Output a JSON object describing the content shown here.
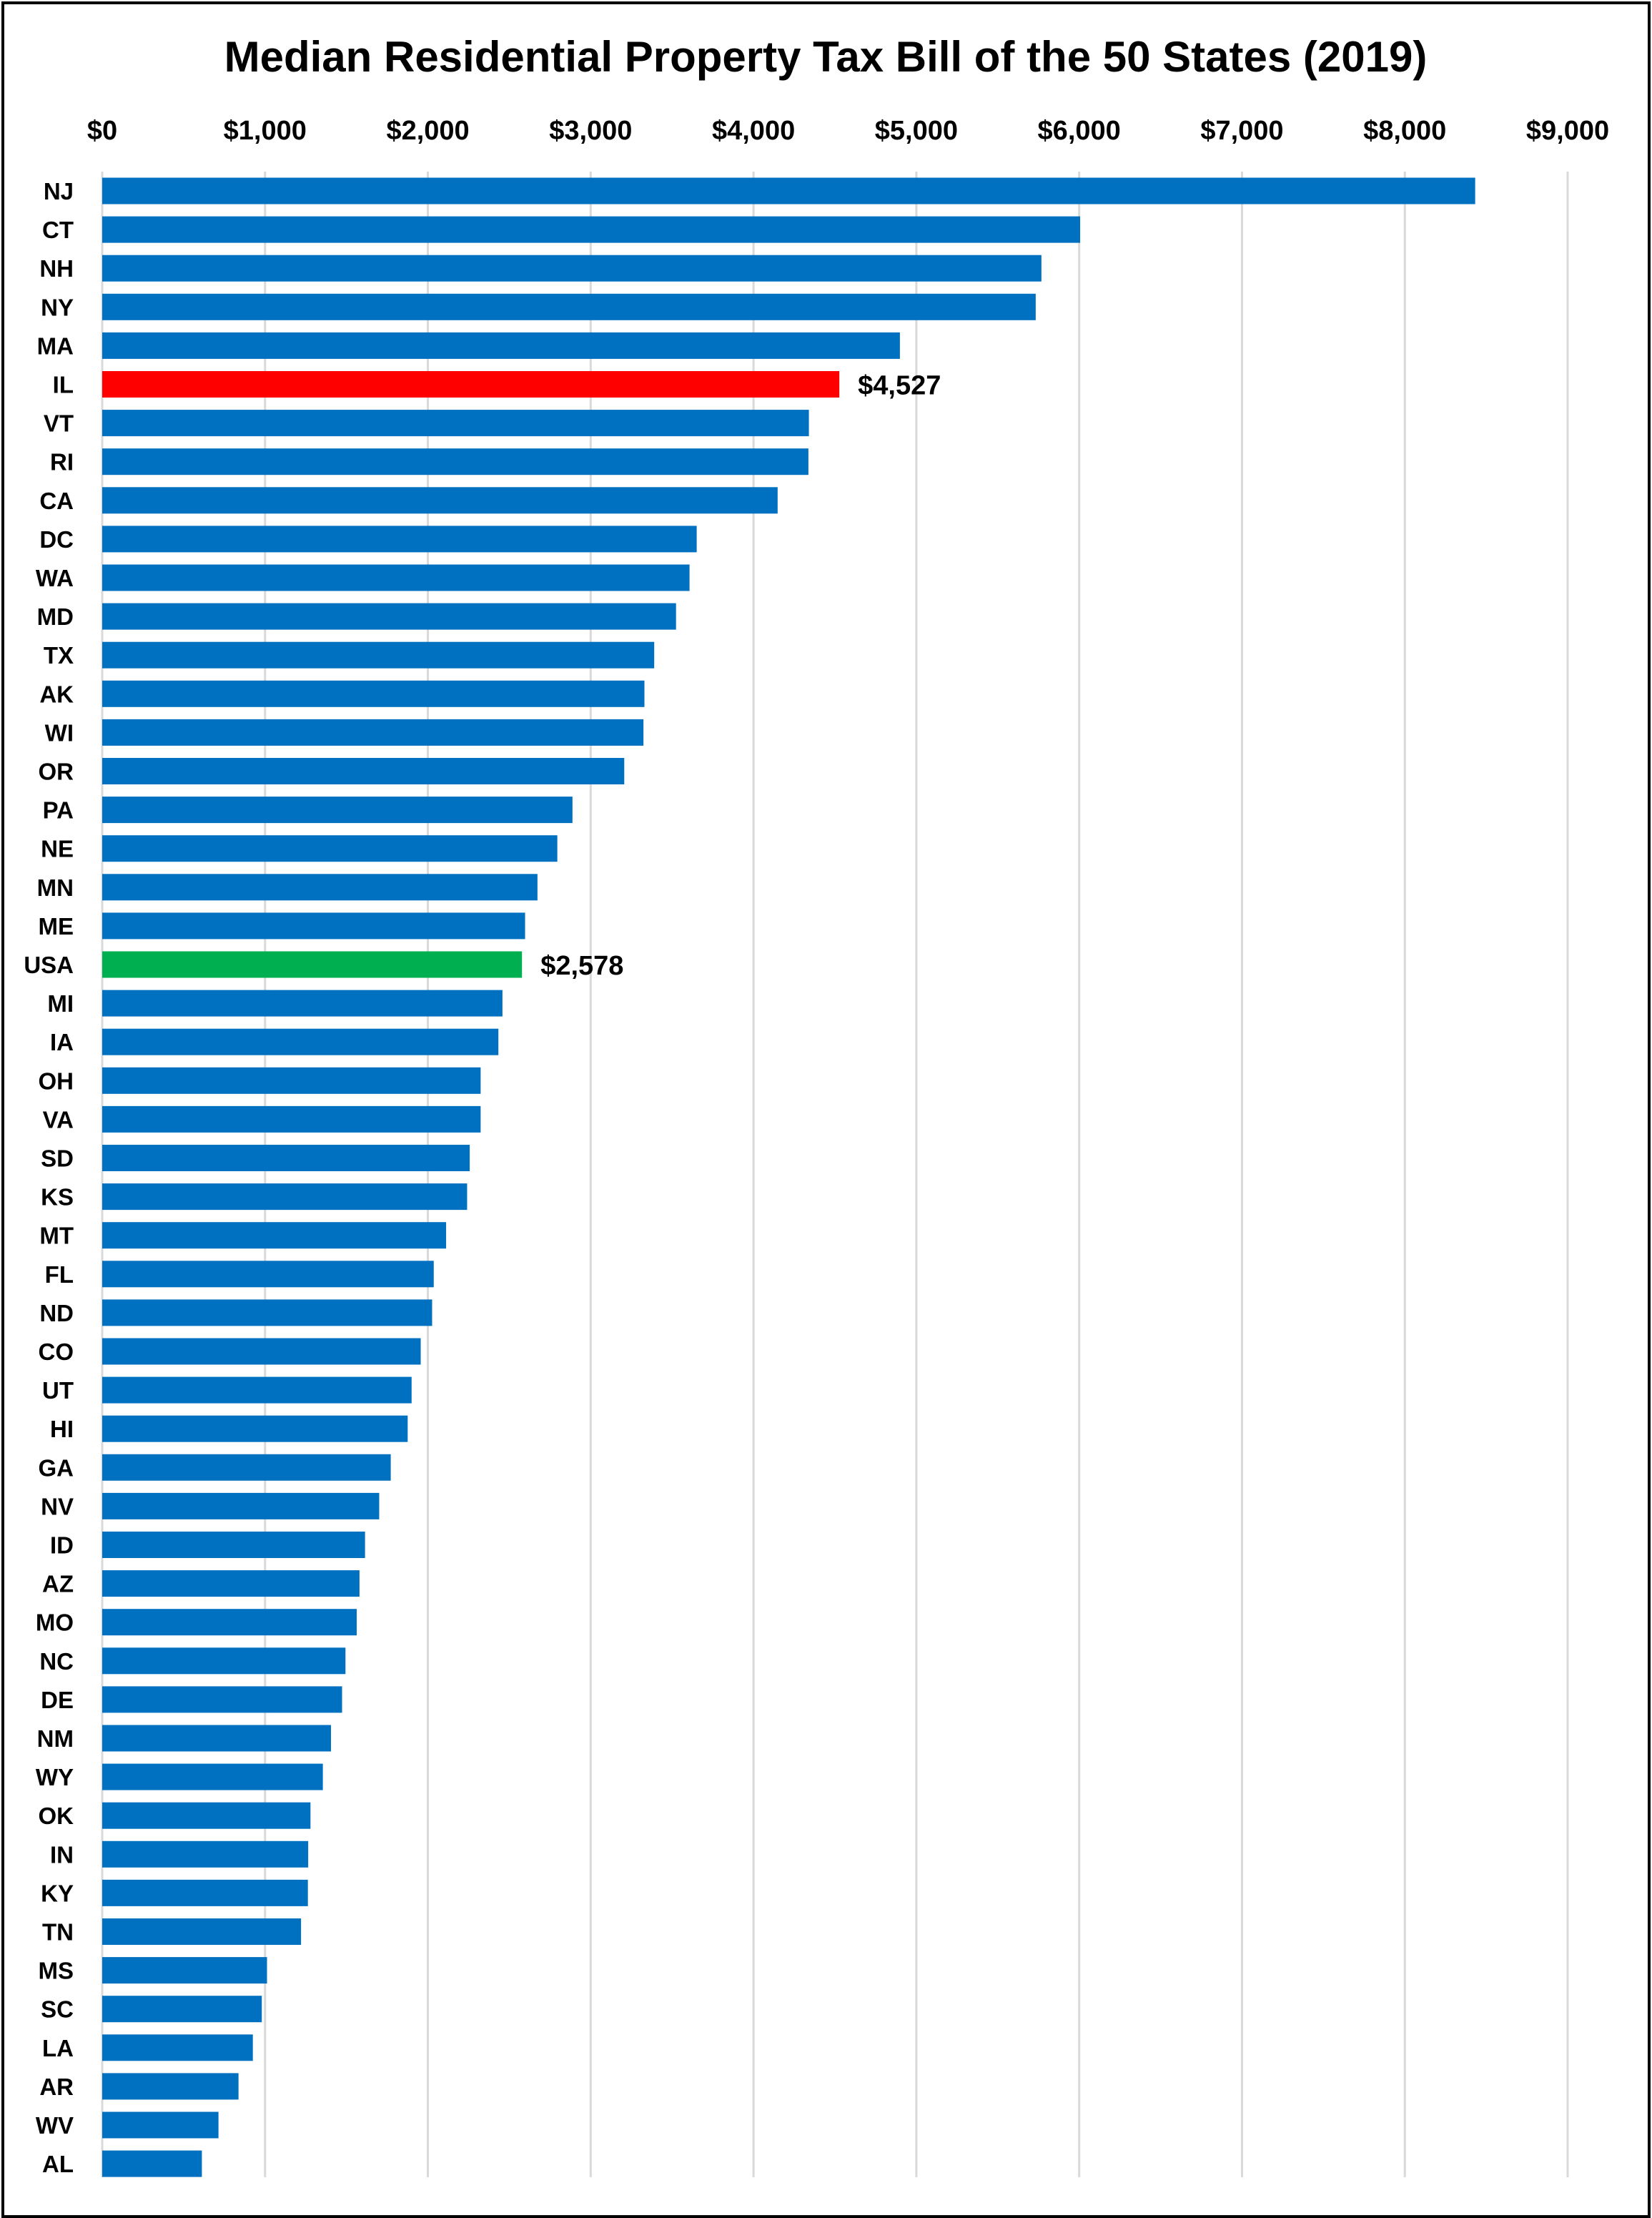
{
  "chart_data": {
    "type": "bar",
    "orientation": "horizontal",
    "title": "Median Residential Property Tax Bill of the 50 States (2019)",
    "xlabel": "",
    "ylabel": "",
    "x_axis_position": "top",
    "xlim": [
      0,
      9000
    ],
    "grid": true,
    "legend": "none",
    "ticks": [
      "$0",
      "$1,000",
      "$2,000",
      "$3,000",
      "$4,000",
      "$5,000",
      "$6,000",
      "$7,000",
      "$8,000",
      "$9,000"
    ],
    "tick_values": [
      0,
      1000,
      2000,
      3000,
      4000,
      5000,
      6000,
      7000,
      8000,
      9000
    ],
    "default_color": "#0070c0",
    "categories": [
      "NJ",
      "CT",
      "NH",
      "NY",
      "MA",
      "IL",
      "VT",
      "RI",
      "CA",
      "DC",
      "WA",
      "MD",
      "TX",
      "AK",
      "WI",
      "OR",
      "PA",
      "NE",
      "MN",
      "ME",
      "USA",
      "MI",
      "IA",
      "OH",
      "VA",
      "SD",
      "KS",
      "MT",
      "FL",
      "ND",
      "CO",
      "UT",
      "HI",
      "GA",
      "NV",
      "ID",
      "AZ",
      "MO",
      "NC",
      "DE",
      "NM",
      "WY",
      "OK",
      "IN",
      "KY",
      "TN",
      "MS",
      "SC",
      "LA",
      "AR",
      "WV",
      "AL"
    ],
    "values": [
      8432,
      6006,
      5768,
      5733,
      4899,
      4527,
      4340,
      4337,
      4148,
      3651,
      3607,
      3524,
      3390,
      3330,
      3324,
      3206,
      2888,
      2795,
      2673,
      2597,
      2578,
      2458,
      2433,
      2324,
      2324,
      2257,
      2241,
      2112,
      2036,
      2026,
      1956,
      1900,
      1876,
      1772,
      1701,
      1614,
      1580,
      1563,
      1494,
      1473,
      1405,
      1355,
      1279,
      1265,
      1263,
      1221,
      1012,
      980,
      925,
      837,
      714,
      612
    ],
    "highlights": [
      {
        "category": "IL",
        "color": "#ff0000",
        "label": "$4,527"
      },
      {
        "category": "USA",
        "color": "#00b050",
        "label": "$2,578"
      }
    ]
  }
}
